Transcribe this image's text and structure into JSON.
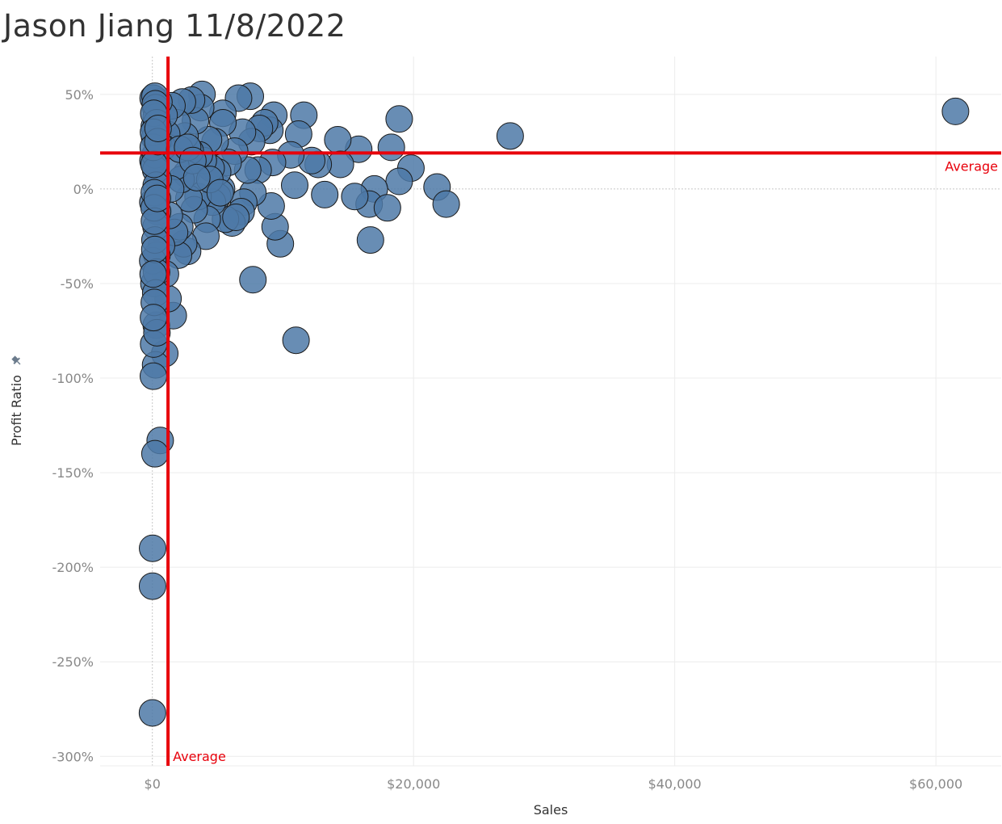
{
  "title": "Jason Jiang 11/8/2022",
  "chart_data": {
    "type": "scatter",
    "title": "Jason Jiang 11/8/2022",
    "xlabel": "Sales",
    "ylabel": "Profit Ratio",
    "xlim": [
      -4000,
      65000
    ],
    "ylim": [
      -3.05,
      0.7
    ],
    "x_ticks": [
      0,
      20000,
      40000,
      60000
    ],
    "x_tick_labels": [
      "$0",
      "$20,000",
      "$40,000",
      "$60,000"
    ],
    "y_ticks": [
      0.5,
      0,
      -0.5,
      -1,
      -1.5,
      -2,
      -2.5,
      -3
    ],
    "y_tick_labels": [
      "50%",
      "0%",
      "-50%",
      "-100%",
      "-150%",
      "-200%",
      "-250%",
      "-300%"
    ],
    "grid": true,
    "reference_lines": [
      {
        "axis": "x",
        "value": 1200,
        "label": "Average",
        "color": "#e8000b"
      },
      {
        "axis": "y",
        "value": 0.19,
        "label": "Average",
        "color": "#e8000b"
      }
    ],
    "marker_color": "#4e79a7",
    "marker_edge_color": "#1a1a1a",
    "points": [
      [
        61500,
        0.41
      ],
      [
        27400,
        0.28
      ],
      [
        18900,
        0.37
      ],
      [
        18300,
        0.22
      ],
      [
        19800,
        0.11
      ],
      [
        18900,
        0.04
      ],
      [
        21800,
        0.01
      ],
      [
        22500,
        -0.08
      ],
      [
        17000,
        0.0
      ],
      [
        16600,
        -0.08
      ],
      [
        18000,
        -0.1
      ],
      [
        16700,
        -0.27
      ],
      [
        15500,
        -0.04
      ],
      [
        15800,
        0.21
      ],
      [
        14200,
        0.26
      ],
      [
        14400,
        0.13
      ],
      [
        13200,
        -0.03
      ],
      [
        12700,
        0.13
      ],
      [
        12200,
        0.15
      ],
      [
        11600,
        0.39
      ],
      [
        11200,
        0.29
      ],
      [
        10900,
        0.02
      ],
      [
        10600,
        0.18
      ],
      [
        11000,
        -0.8
      ],
      [
        9800,
        -0.29
      ],
      [
        9400,
        -0.2
      ],
      [
        9100,
        -0.09
      ],
      [
        9200,
        0.14
      ],
      [
        9300,
        0.39
      ],
      [
        9000,
        0.31
      ],
      [
        8600,
        0.35
      ],
      [
        8200,
        0.32
      ],
      [
        8100,
        0.1
      ],
      [
        7700,
        -0.02
      ],
      [
        7700,
        -0.48
      ],
      [
        7500,
        0.49
      ],
      [
        7600,
        0.25
      ],
      [
        7300,
        0.1
      ],
      [
        7000,
        -0.07
      ],
      [
        6800,
        -0.12
      ],
      [
        6900,
        0.3
      ],
      [
        6600,
        0.48
      ],
      [
        6300,
        0.2
      ],
      [
        6100,
        -0.18
      ],
      [
        5800,
        0.14
      ],
      [
        5600,
        -0.16
      ],
      [
        5400,
        0.4
      ],
      [
        5400,
        0.35
      ],
      [
        5300,
        0.0
      ],
      [
        5000,
        0.09
      ],
      [
        5000,
        -0.04
      ],
      [
        4800,
        0.25
      ],
      [
        4600,
        -0.07
      ],
      [
        4500,
        0.11
      ],
      [
        4200,
        -0.16
      ],
      [
        4300,
        0.26
      ],
      [
        4100,
        -0.25
      ],
      [
        3900,
        0.15
      ],
      [
        3800,
        0.5
      ],
      [
        3700,
        0.43
      ],
      [
        3600,
        0.18
      ],
      [
        3500,
        -0.04
      ],
      [
        3300,
        0.36
      ],
      [
        3200,
        -0.11
      ],
      [
        3000,
        0.47
      ],
      [
        2900,
        0.2
      ],
      [
        2800,
        -0.05
      ],
      [
        2700,
        -0.33
      ],
      [
        2600,
        0.08
      ],
      [
        2500,
        0.28
      ],
      [
        2400,
        -0.29
      ],
      [
        2300,
        0.46
      ],
      [
        2200,
        0.05
      ],
      [
        2100,
        -0.2
      ],
      [
        2000,
        -0.35
      ],
      [
        1900,
        0.35
      ],
      [
        1800,
        0.12
      ],
      [
        1700,
        -0.23
      ],
      [
        1600,
        -0.67
      ],
      [
        1500,
        0.44
      ],
      [
        1400,
        0.0
      ],
      [
        1300,
        -0.14
      ],
      [
        1200,
        -0.58
      ],
      [
        1100,
        0.29
      ],
      [
        1000,
        -0.45
      ],
      [
        950,
        -0.87
      ],
      [
        900,
        0.39
      ],
      [
        800,
        0.22
      ],
      [
        700,
        -0.3
      ],
      [
        600,
        -1.33
      ],
      [
        500,
        0.46
      ],
      [
        450,
        0.05
      ],
      [
        400,
        -0.12
      ],
      [
        350,
        -0.35
      ],
      [
        300,
        -0.72
      ],
      [
        250,
        -0.93
      ],
      [
        200,
        -1.4
      ],
      [
        150,
        0.33
      ],
      [
        120,
        -0.5
      ],
      [
        100,
        -0.82
      ],
      [
        80,
        -0.99
      ],
      [
        60,
        0.48
      ],
      [
        50,
        0.15
      ],
      [
        40,
        -0.07
      ],
      [
        30,
        -0.38
      ],
      [
        20,
        -1.9
      ],
      [
        15,
        -2.1
      ],
      [
        10,
        -2.77
      ],
      [
        200,
        0.49
      ],
      [
        250,
        0.43
      ],
      [
        300,
        0.38
      ],
      [
        180,
        0.27
      ],
      [
        220,
        0.18
      ],
      [
        260,
        0.1
      ],
      [
        300,
        0.02
      ],
      [
        150,
        -0.02
      ],
      [
        280,
        -0.2
      ],
      [
        200,
        -0.27
      ],
      [
        320,
        -0.44
      ],
      [
        260,
        -0.55
      ],
      [
        150,
        -0.6
      ],
      [
        350,
        -0.76
      ],
      [
        230,
        0.45
      ],
      [
        330,
        0.35
      ],
      [
        110,
        0.4
      ],
      [
        90,
        0.3
      ],
      [
        70,
        0.22
      ],
      [
        130,
        0.13
      ],
      [
        140,
        -0.1
      ],
      [
        160,
        -0.17
      ],
      [
        190,
        -0.32
      ],
      [
        60,
        -0.45
      ],
      [
        90,
        -0.68
      ],
      [
        380,
        -0.05
      ],
      [
        420,
        0.25
      ],
      [
        440,
        0.32
      ],
      [
        2100,
        0.21
      ],
      [
        2700,
        0.22
      ],
      [
        3100,
        0.15
      ],
      [
        4400,
        0.05
      ],
      [
        5200,
        -0.02
      ],
      [
        6400,
        -0.15
      ],
      [
        3400,
        0.06
      ]
    ]
  }
}
